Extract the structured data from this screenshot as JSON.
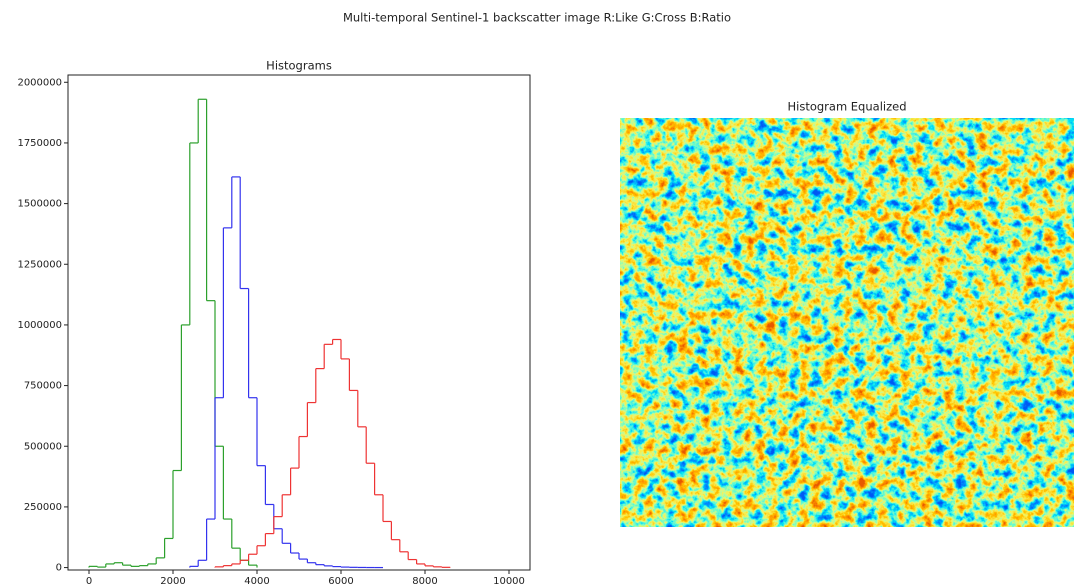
{
  "title": "Multi-temporal Sentinel-1 backscatter image R:Like G:Cross B:Ratio",
  "chart_data": [
    {
      "type": "histogram",
      "title": "Histograms",
      "xlim": [
        -500,
        10500
      ],
      "xticks": [
        0,
        2000,
        4000,
        6000,
        8000,
        10000
      ],
      "ylim": [
        -10000,
        2030000
      ],
      "yticks": [
        0,
        250000,
        500000,
        750000,
        1000000,
        1250000,
        1500000,
        1750000,
        2000000
      ],
      "series": [
        {
          "color": "#2ca02c",
          "bins": [
            0,
            200,
            400,
            600,
            800,
            1000,
            1200,
            1400,
            1600,
            1800,
            2000,
            2200,
            2400,
            2600,
            2800,
            3000,
            3200,
            3400,
            3600,
            3800,
            4000
          ],
          "values": [
            5000,
            2000,
            15000,
            20000,
            10000,
            5000,
            8000,
            15000,
            40000,
            120000,
            400000,
            1000000,
            1750000,
            1930000,
            1100000,
            500000,
            200000,
            80000,
            30000,
            10000
          ]
        },
        {
          "color": "#3333ee",
          "bins": [
            2400,
            2600,
            2800,
            3000,
            3200,
            3400,
            3600,
            3800,
            4000,
            4200,
            4400,
            4600,
            4800,
            5000,
            5200,
            5400,
            5600,
            5800,
            6000,
            6200,
            6400,
            6600,
            6800,
            7000
          ],
          "values": [
            5000,
            30000,
            200000,
            700000,
            1400000,
            1610000,
            1150000,
            700000,
            420000,
            260000,
            160000,
            100000,
            60000,
            35000,
            20000,
            12000,
            7000,
            4000,
            2000,
            1000,
            500,
            200,
            100
          ]
        },
        {
          "color": "#ee3333",
          "bins": [
            3000,
            3200,
            3400,
            3600,
            3800,
            4000,
            4200,
            4400,
            4600,
            4800,
            5000,
            5200,
            5400,
            5600,
            5800,
            6000,
            6200,
            6400,
            6600,
            6800,
            7000,
            7200,
            7400,
            7600,
            7800,
            8000,
            8200,
            8400,
            8600
          ],
          "values": [
            3000,
            8000,
            15000,
            30000,
            55000,
            90000,
            140000,
            210000,
            300000,
            410000,
            540000,
            680000,
            820000,
            920000,
            940000,
            860000,
            730000,
            580000,
            430000,
            300000,
            190000,
            115000,
            65000,
            33000,
            15000,
            7000,
            3000,
            1000
          ]
        }
      ]
    },
    {
      "type": "image",
      "title": "Histogram Equalized"
    }
  ]
}
